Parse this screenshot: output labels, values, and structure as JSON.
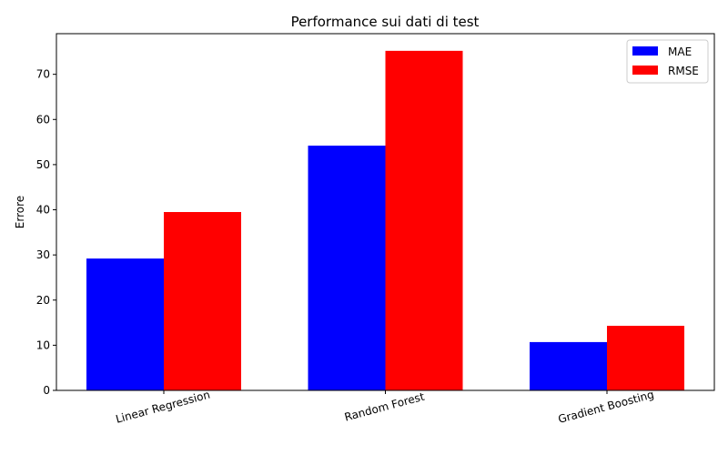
{
  "chart_data": {
    "type": "bar",
    "title": "Performance sui dati di test",
    "xlabel": "",
    "ylabel": "Errore",
    "categories": [
      "Linear Regression",
      "Random Forest",
      "Gradient Boosting"
    ],
    "series": [
      {
        "name": "MAE",
        "color": "#0000ff",
        "values": [
          29.2,
          54.2,
          10.7
        ]
      },
      {
        "name": "RMSE",
        "color": "#ff0000",
        "values": [
          39.5,
          75.2,
          14.3
        ]
      }
    ],
    "ylim": [
      0,
      79
    ],
    "yticks": [
      0,
      10,
      20,
      30,
      40,
      50,
      60,
      70
    ],
    "grid": false,
    "legend_position": "top-right",
    "xtick_rotation_deg": 15
  }
}
